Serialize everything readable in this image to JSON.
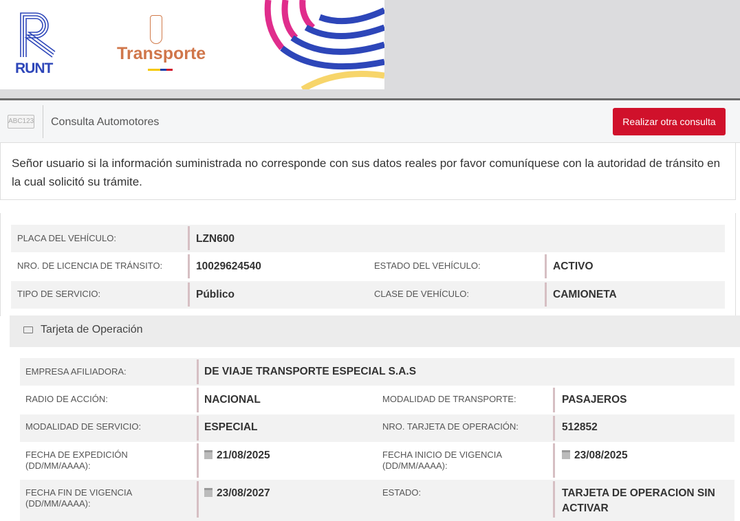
{
  "header": {
    "runt_logo": "RUNT",
    "ministry_logo": "Transporte"
  },
  "toolbar": {
    "icon_text": "ABC123",
    "title": "Consulta Automotores",
    "button": "Realizar otra consulta",
    "button_color": "#d0112b"
  },
  "notice": "Señor usuario si la información suministrada no corresponde con sus datos reales por favor comuníquese con la autoridad de tránsito en la cual solicitó su trámite.",
  "vehicle": {
    "placa_label": "PLACA DEL VEHÍCULO:",
    "placa": "LZN600",
    "licencia_label": "NRO. DE LICENCIA DE TRÁNSITO:",
    "licencia": "10029624540",
    "estado_label": "ESTADO DEL VEHÍCULO:",
    "estado": "ACTIVO",
    "servicio_label": "TIPO DE SERVICIO:",
    "servicio": "Público",
    "clase_label": "CLASE DE VEHÍCULO:",
    "clase": "CAMIONETA"
  },
  "tarjeta": {
    "title": "Tarjeta de Operación",
    "empresa_label": "EMPRESA AFILIADORA:",
    "empresa": "DE VIAJE TRANSPORTE ESPECIAL S.A.S",
    "radio_label": "RADIO DE ACCIÓN:",
    "radio": "NACIONAL",
    "modalidad_t_label": "MODALIDAD DE TRANSPORTE:",
    "modalidad_t": "PASAJEROS",
    "modalidad_s_label": "MODALIDAD DE SERVICIO:",
    "modalidad_s": "ESPECIAL",
    "nro_label": "NRO. TARJETA DE OPERACIÓN:",
    "nro": "512852",
    "expedicion_label": "FECHA DE EXPEDICIÓN",
    "expedicion_fmt": "(DD/MM/AAAA):",
    "expedicion": "21/08/2025",
    "inicio_label": "FECHA INICIO DE VIGENCIA",
    "inicio_fmt": "(DD/MM/AAAA):",
    "inicio": "23/08/2025",
    "fin_label": "FECHA FIN DE VIGENCIA",
    "fin_fmt": "(DD/MM/AAAA):",
    "fin": "23/08/2027",
    "estado_label": "ESTADO:",
    "estado": "TARJETA DE OPERACION SIN ACTIVAR"
  }
}
